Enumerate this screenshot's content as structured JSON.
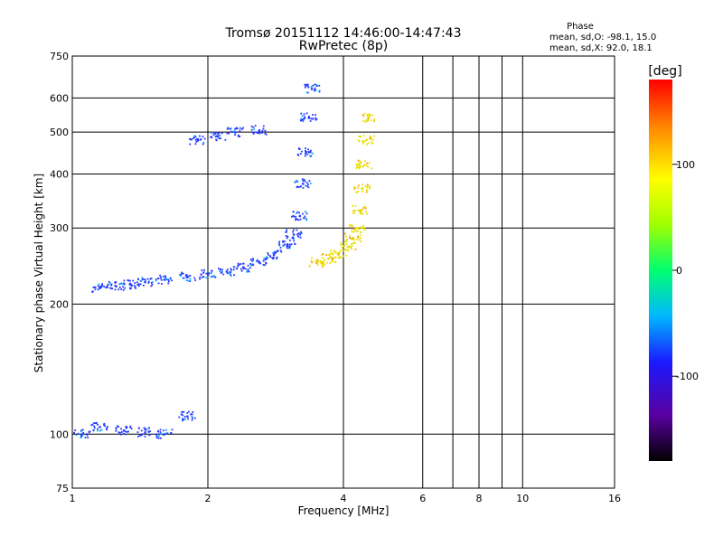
{
  "chart_data": {
    "type": "scatter",
    "title": "Tromsø 20151112 14:46:00-14:47:43",
    "subtitle": "RwPretec (8p)",
    "xlabel": "Frequency [MHz]",
    "ylabel": "Stationary phase Virtual Height [km]",
    "x_scale": "log",
    "y_scale": "log",
    "xlim": [
      1,
      16
    ],
    "ylim": [
      75,
      750
    ],
    "x_ticks": [
      1,
      2,
      4,
      6,
      8,
      10,
      16
    ],
    "x_tick_labels": [
      "1",
      "2",
      "4",
      "6",
      "8",
      "10",
      "16"
    ],
    "x_minor_gridlines": [
      7,
      9
    ],
    "y_ticks": [
      75,
      100,
      200,
      300,
      400,
      500,
      600,
      750
    ],
    "y_tick_labels": [
      "75",
      "100",
      "200",
      "300",
      "400",
      "500",
      "600",
      "750"
    ],
    "grid": true,
    "stats": {
      "title": "Phase",
      "line_o": "mean, sd,O: -98.1, 15.0",
      "line_x": "mean, sd,X:  92.0, 18.1"
    },
    "colorbar": {
      "label": "[deg]",
      "range": [
        -180,
        180
      ],
      "ticks": [
        100,
        0,
        -100
      ],
      "tick_labels": [
        "100",
        "0",
        "-100"
      ]
    },
    "series": [
      {
        "name": "O-mode trace (blue)",
        "color": "#2238ff",
        "points": [
          [
            1.15,
            218
          ],
          [
            1.25,
            220
          ],
          [
            1.35,
            222
          ],
          [
            1.45,
            225
          ],
          [
            1.6,
            228
          ],
          [
            1.8,
            231
          ],
          [
            2.0,
            234
          ],
          [
            2.2,
            238
          ],
          [
            2.4,
            243
          ],
          [
            2.6,
            250
          ],
          [
            2.8,
            260
          ],
          [
            3.0,
            275
          ],
          [
            3.1,
            290
          ],
          [
            3.2,
            320
          ],
          [
            3.25,
            380
          ],
          [
            3.3,
            450
          ],
          [
            3.35,
            540
          ],
          [
            3.4,
            630
          ],
          [
            1.9,
            480
          ],
          [
            2.1,
            490
          ],
          [
            2.3,
            500
          ],
          [
            2.6,
            505
          ],
          [
            1.05,
            100
          ],
          [
            1.15,
            104
          ],
          [
            1.3,
            102
          ],
          [
            1.45,
            101
          ],
          [
            1.6,
            100
          ],
          [
            1.8,
            110
          ]
        ]
      },
      {
        "name": "X-mode trace (yellow)",
        "color": "#e8e000",
        "points": [
          [
            3.5,
            250
          ],
          [
            3.7,
            255
          ],
          [
            3.9,
            262
          ],
          [
            4.1,
            272
          ],
          [
            4.2,
            285
          ],
          [
            4.3,
            300
          ],
          [
            4.35,
            330
          ],
          [
            4.4,
            370
          ],
          [
            4.45,
            420
          ],
          [
            4.5,
            480
          ],
          [
            4.55,
            540
          ]
        ]
      }
    ]
  }
}
